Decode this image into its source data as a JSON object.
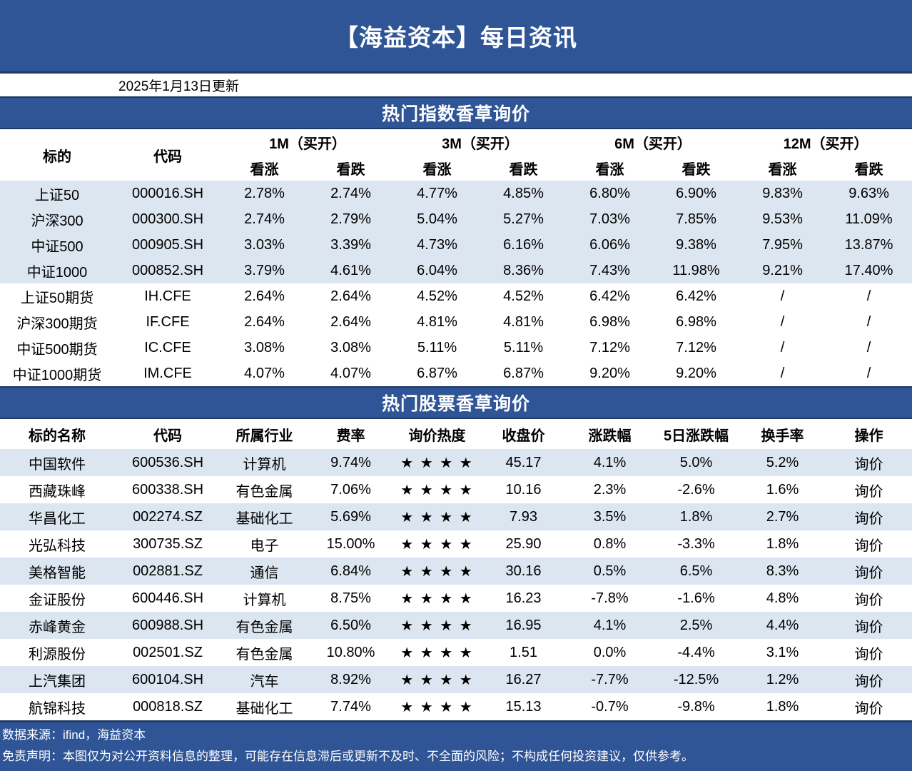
{
  "header": {
    "title": "【海益资本】每日资讯",
    "date": "2025年1月13日更新"
  },
  "index_section": {
    "title": "热门指数香草询价",
    "col_target": "标的",
    "col_code": "代码",
    "tenors": [
      "1M（买开）",
      "3M（买开）",
      "6M（买开）",
      "12M（买开）"
    ],
    "sub_up": "看涨",
    "sub_down": "看跌",
    "rows": [
      {
        "name": "上证50",
        "code": "000016.SH",
        "highlight": true,
        "values": [
          "2.78%",
          "2.74%",
          "4.77%",
          "4.85%",
          "6.80%",
          "6.90%",
          "9.83%",
          "9.63%"
        ]
      },
      {
        "name": "沪深300",
        "code": "000300.SH",
        "highlight": true,
        "values": [
          "2.74%",
          "2.79%",
          "5.04%",
          "5.27%",
          "7.03%",
          "7.85%",
          "9.53%",
          "11.09%"
        ]
      },
      {
        "name": "中证500",
        "code": "000905.SH",
        "highlight": true,
        "values": [
          "3.03%",
          "3.39%",
          "4.73%",
          "6.16%",
          "6.06%",
          "9.38%",
          "7.95%",
          "13.87%"
        ]
      },
      {
        "name": "中证1000",
        "code": "000852.SH",
        "highlight": true,
        "values": [
          "3.79%",
          "4.61%",
          "6.04%",
          "8.36%",
          "7.43%",
          "11.98%",
          "9.21%",
          "17.40%"
        ]
      },
      {
        "name": "上证50期货",
        "code": "IH.CFE",
        "highlight": false,
        "values": [
          "2.64%",
          "2.64%",
          "4.52%",
          "4.52%",
          "6.42%",
          "6.42%",
          "/",
          "/"
        ]
      },
      {
        "name": "沪深300期货",
        "code": "IF.CFE",
        "highlight": false,
        "values": [
          "2.64%",
          "2.64%",
          "4.81%",
          "4.81%",
          "6.98%",
          "6.98%",
          "/",
          "/"
        ]
      },
      {
        "name": "中证500期货",
        "code": "IC.CFE",
        "highlight": false,
        "values": [
          "3.08%",
          "3.08%",
          "5.11%",
          "5.11%",
          "7.12%",
          "7.12%",
          "/",
          "/"
        ]
      },
      {
        "name": "中证1000期货",
        "code": "IM.CFE",
        "highlight": false,
        "values": [
          "4.07%",
          "4.07%",
          "6.87%",
          "6.87%",
          "9.20%",
          "9.20%",
          "/",
          "/"
        ]
      }
    ]
  },
  "stock_section": {
    "title": "热门股票香草询价",
    "headers": [
      "标的名称",
      "代码",
      "所属行业",
      "费率",
      "询价热度",
      "收盘价",
      "涨跌幅",
      "5日涨跌幅",
      "换手率",
      "操作"
    ],
    "stars": "★ ★ ★ ★",
    "action_label": "询价",
    "rows": [
      {
        "name": "中国软件",
        "code": "600536.SH",
        "industry": "计算机",
        "fee": "9.74%",
        "close": "45.17",
        "chg": "4.1%",
        "chg5d": "5.0%",
        "turnover": "5.2%"
      },
      {
        "name": "西藏珠峰",
        "code": "600338.SH",
        "industry": "有色金属",
        "fee": "7.06%",
        "close": "10.16",
        "chg": "2.3%",
        "chg5d": "-2.6%",
        "turnover": "1.6%"
      },
      {
        "name": "华昌化工",
        "code": "002274.SZ",
        "industry": "基础化工",
        "fee": "5.69%",
        "close": "7.93",
        "chg": "3.5%",
        "chg5d": "1.8%",
        "turnover": "2.7%"
      },
      {
        "name": "光弘科技",
        "code": "300735.SZ",
        "industry": "电子",
        "fee": "15.00%",
        "close": "25.90",
        "chg": "0.8%",
        "chg5d": "-3.3%",
        "turnover": "1.8%"
      },
      {
        "name": "美格智能",
        "code": "002881.SZ",
        "industry": "通信",
        "fee": "6.84%",
        "close": "30.16",
        "chg": "0.5%",
        "chg5d": "6.5%",
        "turnover": "8.3%"
      },
      {
        "name": "金证股份",
        "code": "600446.SH",
        "industry": "计算机",
        "fee": "8.75%",
        "close": "16.23",
        "chg": "-7.8%",
        "chg5d": "-1.6%",
        "turnover": "4.8%"
      },
      {
        "name": "赤峰黄金",
        "code": "600988.SH",
        "industry": "有色金属",
        "fee": "6.50%",
        "close": "16.95",
        "chg": "4.1%",
        "chg5d": "2.5%",
        "turnover": "4.4%"
      },
      {
        "name": "利源股份",
        "code": "002501.SZ",
        "industry": "有色金属",
        "fee": "10.80%",
        "close": "1.51",
        "chg": "0.0%",
        "chg5d": "-4.4%",
        "turnover": "3.1%"
      },
      {
        "name": "上汽集团",
        "code": "600104.SH",
        "industry": "汽车",
        "fee": "8.92%",
        "close": "16.27",
        "chg": "-7.7%",
        "chg5d": "-12.5%",
        "turnover": "1.2%"
      },
      {
        "name": "航锦科技",
        "code": "000818.SZ",
        "industry": "基础化工",
        "fee": "7.74%",
        "close": "15.13",
        "chg": "-0.7%",
        "chg5d": "-9.8%",
        "turnover": "1.8%"
      }
    ]
  },
  "footer": {
    "source": "数据来源：ifind，海益资本",
    "disclaimer": "免责声明：本图仅为对公开资料信息的整理，可能存在信息滞后或更新不及时、不全面的风险；不构成任何投资建议，仅供参考。"
  },
  "colors": {
    "banner_blue": "#2F5597",
    "dark_navy": "#1F3864",
    "row_light_blue": "#DCE6F1",
    "text_white": "#FFFFFF",
    "text_black": "#000000"
  }
}
